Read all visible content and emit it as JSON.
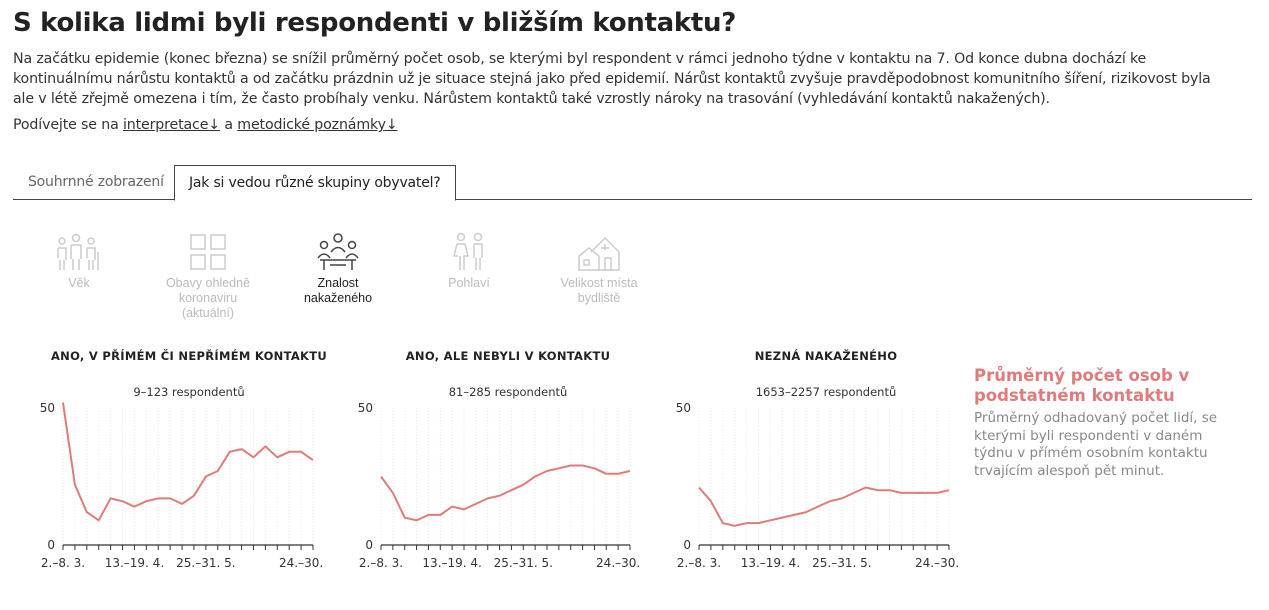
{
  "title": "S kolika lidmi byli respondenti v bližším kontaktu?",
  "intro": "Na začátku epidemie (konec března) se snížil průměrný počet osob, se kterými byl respondent v rámci jednoho týdne v kontaktu na 7. Od konce dubna dochází ke kontinuálnímu nárůstu kontaktů a od začátku prázdnin už je situace stejná jako před epidemií. Nárůst kontaktů zvyšuje pravděpodobnost komunitního šíření, rizikovost byla ale v létě zřejmě omezena i tím, že často probíhaly venku. Nárůstem kontaktů také vzrostly nároky na trasování (vyhledávání kontaktů nakažených).",
  "links": {
    "prefix": "Podívejte se na ",
    "link1": "interpretace↓",
    "middle": " a ",
    "link2": "metodické poznámky↓"
  },
  "tabs": [
    {
      "label": "Souhrnné zobrazení",
      "active": false
    },
    {
      "label": "Jak si vedou různé skupiny obyvatel?",
      "active": true
    }
  ],
  "categories": [
    {
      "label": "Věk",
      "icon": "people-age-icon",
      "active": false
    },
    {
      "label": "Obavy ohledně koronaviru (aktuální)",
      "icon": "grid-squares-icon",
      "active": false
    },
    {
      "label": "Znalost nakaženého",
      "icon": "people-meeting-icon",
      "active": true
    },
    {
      "label": "Pohlaví",
      "icon": "man-woman-icon",
      "active": false
    },
    {
      "label": "Velikost místa bydliště",
      "icon": "houses-icon",
      "active": false
    }
  ],
  "legend": {
    "title": "Průměrný počet osob v podstatném kontaktu",
    "description": "Průměrný odhadovaný počet lidí, se kterými byli respondenti v daném týdnu v přímém osobním kontaktu trvajícím alespoň pět minut.",
    "line_color": "#e07b7b"
  },
  "chart_data": [
    {
      "type": "line",
      "title": "ANO, V PŘÍMÉM ČI NEPŘÍMÉM KONTAKTU",
      "subtitle": "9–123 respondentů",
      "x_tick_labels": [
        "2.–8. 3.",
        "13.–19. 4.",
        "25.–31. 5.",
        "24.–30."
      ],
      "x_tick_weeks": [
        0,
        6,
        12,
        20
      ],
      "ylim": [
        0,
        50
      ],
      "y_tick_labels": [
        "0",
        "50"
      ],
      "weeks": [
        0,
        1,
        2,
        3,
        4,
        5,
        6,
        7,
        8,
        9,
        10,
        11,
        12,
        13,
        14,
        15,
        16,
        17,
        18,
        19,
        20,
        21
      ],
      "values": [
        52,
        22,
        12,
        9,
        17,
        16,
        14,
        16,
        17,
        17,
        15,
        18,
        25,
        27,
        34,
        35,
        32,
        36,
        32,
        34,
        34,
        31
      ]
    },
    {
      "type": "line",
      "title": "ANO, ALE NEBYLI V KONTAKTU",
      "subtitle": "81–285 respondentů",
      "x_tick_labels": [
        "2.–8. 3.",
        "13.–19. 4.",
        "25.–31. 5.",
        "24.–30."
      ],
      "x_tick_weeks": [
        0,
        6,
        12,
        20
      ],
      "ylim": [
        0,
        50
      ],
      "y_tick_labels": [
        "0",
        "50"
      ],
      "weeks": [
        0,
        1,
        2,
        3,
        4,
        5,
        6,
        7,
        8,
        9,
        10,
        11,
        12,
        13,
        14,
        15,
        16,
        17,
        18,
        19,
        20,
        21
      ],
      "values": [
        25,
        19,
        10,
        9,
        11,
        11,
        14,
        13,
        15,
        17,
        18,
        20,
        22,
        25,
        27,
        28,
        29,
        29,
        28,
        26,
        26,
        27
      ]
    },
    {
      "type": "line",
      "title": "NEZNÁ NAKAŽENÉHO",
      "subtitle": "1653–2257 respondentů",
      "x_tick_labels": [
        "2.–8. 3.",
        "13.–19. 4.",
        "25.–31. 5.",
        "24.–30."
      ],
      "x_tick_weeks": [
        0,
        6,
        12,
        20
      ],
      "ylim": [
        0,
        50
      ],
      "y_tick_labels": [
        "0",
        "50"
      ],
      "weeks": [
        0,
        1,
        2,
        3,
        4,
        5,
        6,
        7,
        8,
        9,
        10,
        11,
        12,
        13,
        14,
        15,
        16,
        17,
        18,
        19,
        20,
        21
      ],
      "values": [
        21,
        16,
        8,
        7,
        8,
        8,
        9,
        10,
        11,
        12,
        14,
        16,
        17,
        19,
        21,
        20,
        20,
        19,
        19,
        19,
        19,
        20
      ]
    }
  ]
}
